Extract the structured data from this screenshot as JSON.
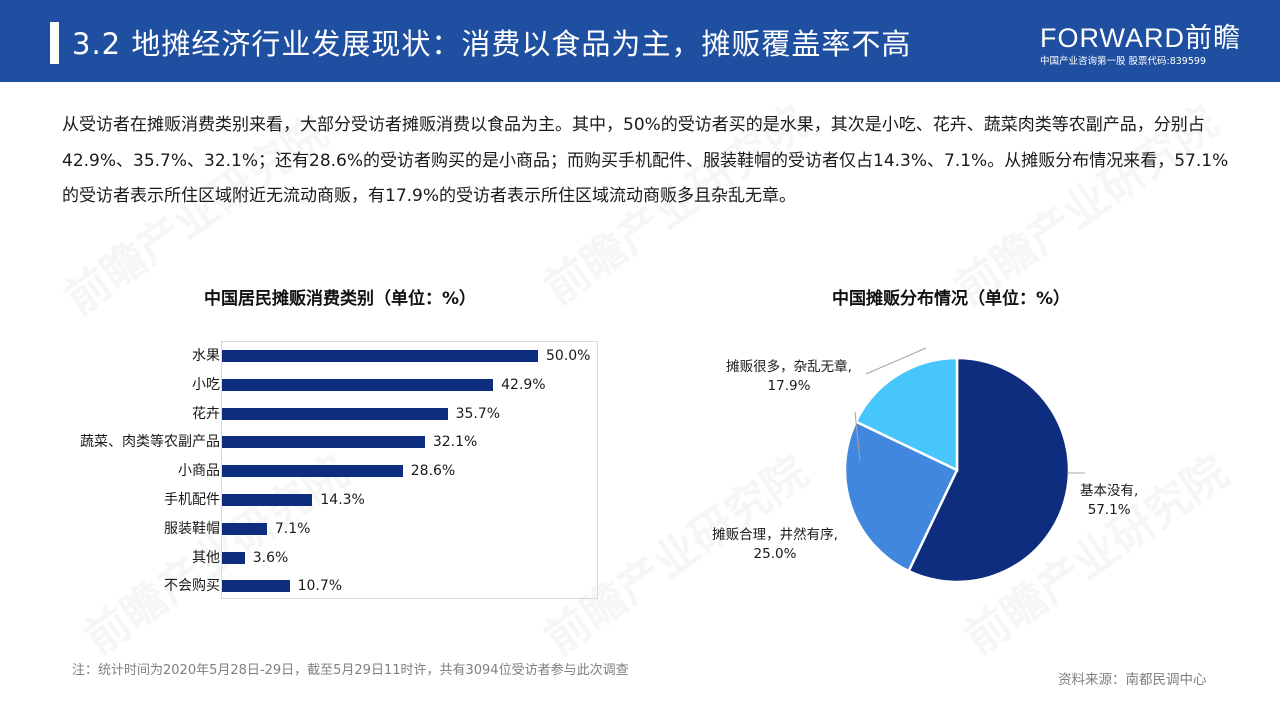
{
  "header": {
    "title": "3.2 地摊经济行业发展现状：消费以食品为主，摊贩覆盖率不高",
    "logo_main": "FORWARD前瞻",
    "logo_sub": "中国产业咨询第一股 股票代码:839599",
    "bg_color": "#1f4fa0"
  },
  "intro": {
    "text": "从受访者在摊贩消费类别来看，大部分受访者摊贩消费以食品为主。其中，50%的受访者买的是水果，其次是小吃、花卉、蔬菜肉类等农副产品，分别占42.9%、35.7%、32.1%；还有28.6%的受访者购买的是小商品；而购买手机配件、服装鞋帽的受访者仅占14.3%、7.1%。从摊贩分布情况来看，57.1%的受访者表示所住区域附近无流动商贩，有17.9%的受访者表示所住区域流动商贩多且杂乱无章。"
  },
  "watermark": {
    "text": "前瞻产业研究院"
  },
  "chart_data": [
    {
      "type": "bar",
      "orientation": "horizontal",
      "title": "中国居民摊贩消费类别（单位：%）",
      "categories": [
        "水果",
        "小吃",
        "花卉",
        "蔬菜、肉类等农副产品",
        "小商品",
        "手机配件",
        "服装鞋帽",
        "其他",
        "不会购买"
      ],
      "values": [
        50.0,
        42.9,
        35.7,
        32.1,
        28.6,
        14.3,
        7.1,
        3.6,
        10.7
      ],
      "value_labels": [
        "50.0%",
        "42.9%",
        "35.7%",
        "32.1%",
        "28.6%",
        "14.3%",
        "7.1%",
        "3.6%",
        "10.7%"
      ],
      "xlabel": "",
      "ylabel": "",
      "xlim": [
        0,
        60
      ],
      "grid": false,
      "bar_color": "#0e2d7e"
    },
    {
      "type": "pie",
      "title": "中国摊贩分布情况（单位：%）",
      "labels": [
        "基本没有",
        "摊贩合理，井然有序",
        "摊贩很多，杂乱无章"
      ],
      "values": [
        57.1,
        25.0,
        17.9
      ],
      "value_labels": [
        "57.1%",
        "25.0%",
        "17.9%"
      ],
      "colors": [
        "#0e2d7e",
        "#4187de",
        "#47c6fb"
      ],
      "start_angle_deg": 90,
      "direction": "clockwise"
    }
  ],
  "bar_chart": {
    "title": "中国居民摊贩消费类别（单位：%）",
    "rows": [
      {
        "label": "水果",
        "value": "50.0%"
      },
      {
        "label": "小吃",
        "value": "42.9%"
      },
      {
        "label": "花卉",
        "value": "35.7%"
      },
      {
        "label": "蔬菜、肉类等农副产品",
        "value": "32.1%"
      },
      {
        "label": "小商品",
        "value": "28.6%"
      },
      {
        "label": "手机配件",
        "value": "14.3%"
      },
      {
        "label": "服装鞋帽",
        "value": "7.1%"
      },
      {
        "label": "其他",
        "value": "3.6%"
      },
      {
        "label": "不会购买",
        "value": "10.7%"
      }
    ]
  },
  "pie_chart": {
    "title": "中国摊贩分布情况（单位：%）",
    "slices": [
      {
        "label": "基本没有,",
        "value": "57.1%"
      },
      {
        "label": "摊贩合理，井然有序,",
        "value": "25.0%"
      },
      {
        "label": "摊贩很多，杂乱无章,",
        "value": "17.9%"
      }
    ]
  },
  "footer": {
    "note": "注：统计时间为2020年5月28日-29日，截至5月29日11时许，共有3094位受访者参与此次调查",
    "source": "资料来源：南都民调中心"
  }
}
